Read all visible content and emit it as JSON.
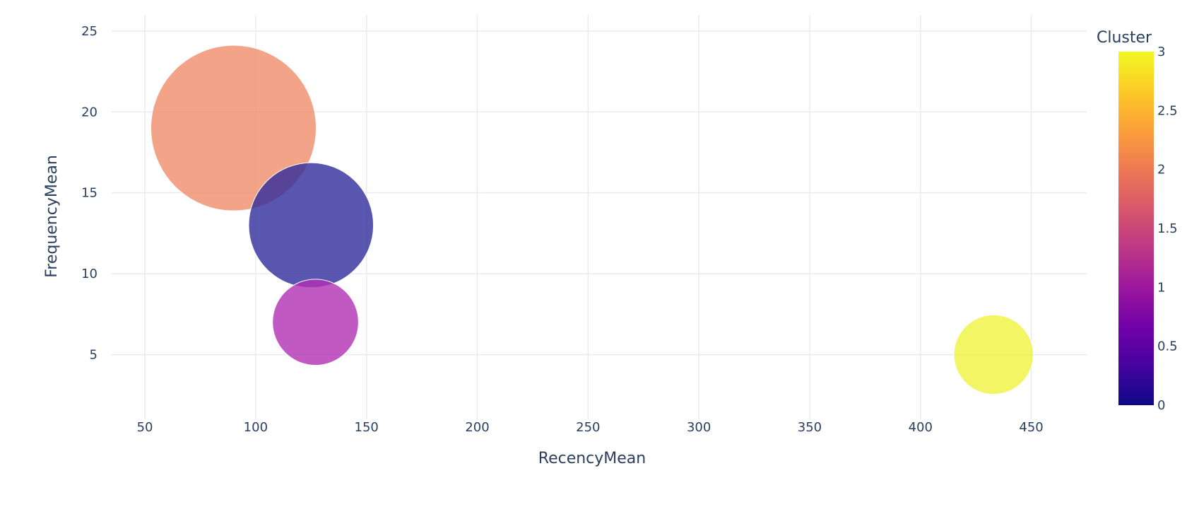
{
  "chart_data": {
    "type": "scatter",
    "subtype": "bubble",
    "xlabel": "RecencyMean",
    "ylabel": "FrequencyMean",
    "xlim": [
      35,
      475
    ],
    "ylim": [
      1,
      26
    ],
    "x_ticks": [
      50,
      100,
      150,
      200,
      250,
      300,
      350,
      400,
      450
    ],
    "y_ticks": [
      5,
      10,
      15,
      20,
      25
    ],
    "grid": true,
    "points": [
      {
        "cluster": 2,
        "x": 90,
        "y": 19,
        "size_rel": 1.0,
        "color": "#ef8c6a"
      },
      {
        "cluster": 0,
        "x": 125,
        "y": 13,
        "size_rel": 0.755,
        "color": "#2f2c9c"
      },
      {
        "cluster": 1,
        "x": 127,
        "y": 7,
        "size_rel": 0.52,
        "color": "#b02fb3"
      },
      {
        "cluster": 3,
        "x": 433,
        "y": 5,
        "size_rel": 0.48,
        "color": "#eff33d"
      }
    ],
    "colorbar": {
      "title": "Cluster",
      "min": 0,
      "max": 3,
      "tick_labels": [
        "0",
        "0.5",
        "1",
        "1.5",
        "2",
        "2.5",
        "3"
      ],
      "colorscale": [
        "#0d0887",
        "#46039f",
        "#7201a8",
        "#9c179e",
        "#bd3786",
        "#d8576b",
        "#ed7953",
        "#fb9f3a",
        "#fdca26",
        "#f0f921"
      ]
    }
  }
}
